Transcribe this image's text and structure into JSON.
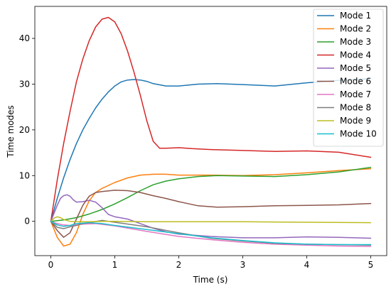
{
  "chart_data": {
    "type": "line",
    "xlabel": "Time (s)",
    "ylabel": "Time modes",
    "xlim": [
      -0.25,
      5.25
    ],
    "ylim": [
      -7.5,
      47.0
    ],
    "xticks": [
      0,
      1,
      2,
      3,
      4,
      5
    ],
    "yticks": [
      0,
      10,
      20,
      30,
      40
    ],
    "grid": false,
    "legend_position": "top-right",
    "series": [
      {
        "name": "Mode 1",
        "color": "#1f77b4",
        "x": [
          0,
          0.1,
          0.2,
          0.3,
          0.4,
          0.5,
          0.6,
          0.7,
          0.8,
          0.9,
          1.0,
          1.1,
          1.2,
          1.3,
          1.4,
          1.5,
          1.6,
          1.8,
          2.0,
          2.3,
          2.6,
          3.0,
          3.5,
          4.0,
          4.5,
          5.0
        ],
        "y": [
          0,
          5,
          9.5,
          13.5,
          17,
          20,
          22.5,
          24.8,
          26.7,
          28.3,
          29.6,
          30.5,
          30.9,
          31.0,
          30.9,
          30.6,
          30.1,
          29.6,
          29.6,
          30.0,
          30.1,
          29.9,
          29.6,
          30.3,
          30.8,
          31.2
        ]
      },
      {
        "name": "Mode 2",
        "color": "#ff7f0e",
        "x": [
          0,
          0.1,
          0.2,
          0.3,
          0.4,
          0.5,
          0.6,
          0.7,
          0.8,
          1.0,
          1.2,
          1.4,
          1.6,
          1.8,
          2.0,
          2.5,
          3.0,
          3.5,
          4.0,
          4.5,
          5.0
        ],
        "y": [
          0,
          -3.5,
          -5.4,
          -5.0,
          -2.5,
          1.5,
          4.5,
          6.3,
          7.2,
          8.5,
          9.5,
          10.1,
          10.3,
          10.3,
          10.1,
          10.1,
          10.0,
          10.2,
          10.6,
          11.1,
          11.5
        ]
      },
      {
        "name": "Mode 3",
        "color": "#2ca02c",
        "x": [
          0,
          0.2,
          0.4,
          0.6,
          0.8,
          1.0,
          1.2,
          1.4,
          1.6,
          1.8,
          2.0,
          2.3,
          2.6,
          3.0,
          3.5,
          4.0,
          4.5,
          5.0
        ],
        "y": [
          0,
          0.3,
          0.8,
          1.6,
          2.6,
          3.8,
          5.2,
          6.7,
          8.0,
          8.8,
          9.3,
          9.8,
          10.0,
          9.9,
          9.8,
          10.2,
          10.8,
          11.8
        ]
      },
      {
        "name": "Mode 4",
        "color": "#d62728",
        "x": [
          0,
          0.1,
          0.2,
          0.3,
          0.4,
          0.5,
          0.6,
          0.7,
          0.8,
          0.9,
          1.0,
          1.1,
          1.2,
          1.3,
          1.4,
          1.5,
          1.6,
          1.7,
          1.8,
          2.0,
          2.2,
          2.5,
          3.0,
          3.5,
          4.0,
          4.5,
          5.0
        ],
        "y": [
          0,
          9,
          17,
          24,
          30.5,
          35.5,
          39.5,
          42.5,
          44.2,
          44.6,
          43.6,
          41.0,
          37.2,
          32.6,
          27.5,
          22.0,
          17.5,
          16.0,
          16.0,
          16.1,
          15.9,
          15.7,
          15.5,
          15.3,
          15.4,
          15.1,
          14.0
        ]
      },
      {
        "name": "Mode 5",
        "color": "#9467bd",
        "x": [
          0,
          0.1,
          0.15,
          0.2,
          0.25,
          0.3,
          0.35,
          0.4,
          0.5,
          0.6,
          0.7,
          0.8,
          0.9,
          1.0,
          1.2,
          1.4,
          1.6,
          1.8,
          2.0,
          2.5,
          3.0,
          3.5,
          4.0,
          4.5,
          5.0
        ],
        "y": [
          0,
          3.5,
          5.0,
          5.6,
          5.8,
          5.5,
          4.7,
          4.2,
          4.3,
          4.6,
          4.2,
          3.0,
          1.5,
          1.0,
          0.5,
          -0.5,
          -1.5,
          -2.3,
          -2.8,
          -3.3,
          -3.6,
          -3.6,
          -3.4,
          -3.5,
          -3.7
        ]
      },
      {
        "name": "Mode 6",
        "color": "#8c564b",
        "x": [
          0,
          0.1,
          0.2,
          0.3,
          0.4,
          0.5,
          0.6,
          0.7,
          0.8,
          1.0,
          1.2,
          1.4,
          1.6,
          1.8,
          2.0,
          2.3,
          2.6,
          3.0,
          3.5,
          4.0,
          4.5,
          5.0
        ],
        "y": [
          0,
          -2.0,
          -3.5,
          -2.5,
          0.5,
          3.5,
          5.5,
          6.3,
          6.5,
          6.8,
          6.7,
          6.3,
          5.6,
          5.0,
          4.3,
          3.4,
          3.1,
          3.2,
          3.4,
          3.5,
          3.6,
          3.9
        ]
      },
      {
        "name": "Mode 7",
        "color": "#e377c2",
        "x": [
          0,
          0.1,
          0.2,
          0.3,
          0.4,
          0.5,
          0.7,
          1.0,
          1.5,
          2.0,
          2.5,
          3.0,
          3.5,
          4.0,
          4.5,
          5.0
        ],
        "y": [
          0,
          -0.5,
          -0.8,
          -0.9,
          -0.8,
          -0.6,
          -0.5,
          -1.0,
          -2.2,
          -3.3,
          -4.0,
          -4.6,
          -5.0,
          -5.2,
          -5.4,
          -5.5
        ]
      },
      {
        "name": "Mode 8",
        "color": "#7f7f7f",
        "x": [
          0,
          0.1,
          0.2,
          0.3,
          0.4,
          0.5,
          0.6,
          0.8,
          1.0,
          1.5,
          2.0,
          2.5,
          3.0,
          3.5,
          4.0,
          4.5,
          5.0
        ],
        "y": [
          0,
          -1.3,
          -1.6,
          -1.2,
          -0.9,
          -0.5,
          -0.3,
          0.2,
          -0.2,
          -1.2,
          -2.5,
          -3.7,
          -4.3,
          -4.8,
          -5.0,
          -5.1,
          -5.2
        ]
      },
      {
        "name": "Mode 9",
        "color": "#bcbd22",
        "x": [
          0,
          0.05,
          0.1,
          0.15,
          0.2,
          0.3,
          0.4,
          0.6,
          0.8,
          1.0,
          1.5,
          2.0,
          3.0,
          4.0,
          5.0
        ],
        "y": [
          0,
          0.7,
          1.0,
          0.8,
          0.4,
          0.0,
          -0.1,
          -0.1,
          0.0,
          0.0,
          -0.1,
          -0.1,
          -0.1,
          -0.2,
          -0.3
        ]
      },
      {
        "name": "Mode 10",
        "color": "#17becf",
        "x": [
          0,
          0.1,
          0.2,
          0.3,
          0.4,
          0.6,
          0.8,
          1.0,
          1.5,
          2.0,
          2.5,
          3.0,
          3.5,
          4.0,
          4.5,
          5.0
        ],
        "y": [
          0,
          -0.8,
          -1.1,
          -0.9,
          -0.5,
          -0.3,
          -0.5,
          -0.9,
          -1.8,
          -2.7,
          -3.6,
          -4.2,
          -4.7,
          -5.0,
          -5.1,
          -5.1
        ]
      }
    ]
  }
}
